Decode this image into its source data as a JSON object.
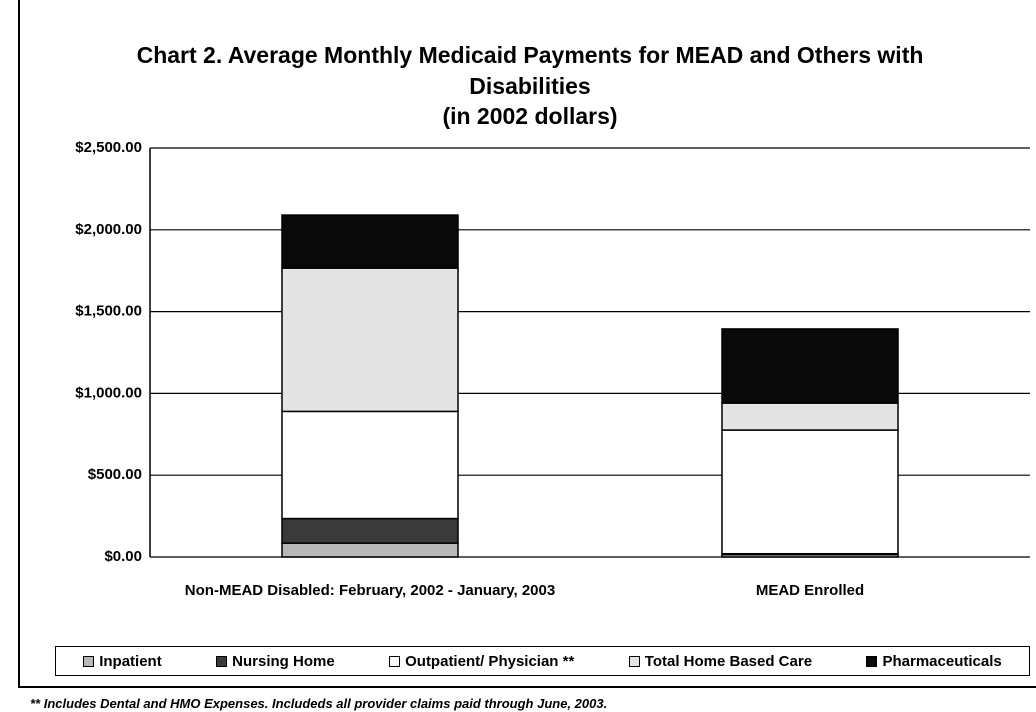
{
  "chart_data": {
    "type": "stacked_bar",
    "title": "Chart 2. Average Monthly Medicaid Payments for MEAD and Others with Disabilities",
    "subtitle": "(in 2002 dollars)",
    "categories": [
      "Non-MEAD Disabled: February, 2002 - January, 2003",
      "MEAD Enrolled"
    ],
    "series": [
      {
        "name": "Inpatient",
        "color": "#b8b8b8",
        "values": [
          85,
          15
        ]
      },
      {
        "name": "Nursing Home",
        "color": "#3a3a3a",
        "values": [
          150,
          5
        ]
      },
      {
        "name": "Outpatient/ Physician **",
        "color": "#ffffff",
        "values": [
          655,
          756
        ]
      },
      {
        "name": "Total Home Based Care",
        "color": "#e4e4e4",
        "values": [
          876,
          165
        ]
      },
      {
        "name": "Pharmaceuticals",
        "color": "#0a0a0a",
        "values": [
          324,
          453
        ]
      }
    ],
    "ylim": [
      0,
      2500
    ],
    "yticks": [
      {
        "value": 0,
        "label": "$0.00"
      },
      {
        "value": 500,
        "label": "$500.00"
      },
      {
        "value": 1000,
        "label": "$1,000.00"
      },
      {
        "value": 1500,
        "label": "$1,500.00"
      },
      {
        "value": 2000,
        "label": "$2,000.00"
      },
      {
        "value": 2500,
        "label": "$2,500.00"
      }
    ],
    "grid": true,
    "legend": "bottom",
    "footnote": "** Includes Dental and HMO Expenses.  Includeds all provider claims paid through June, 2003."
  }
}
